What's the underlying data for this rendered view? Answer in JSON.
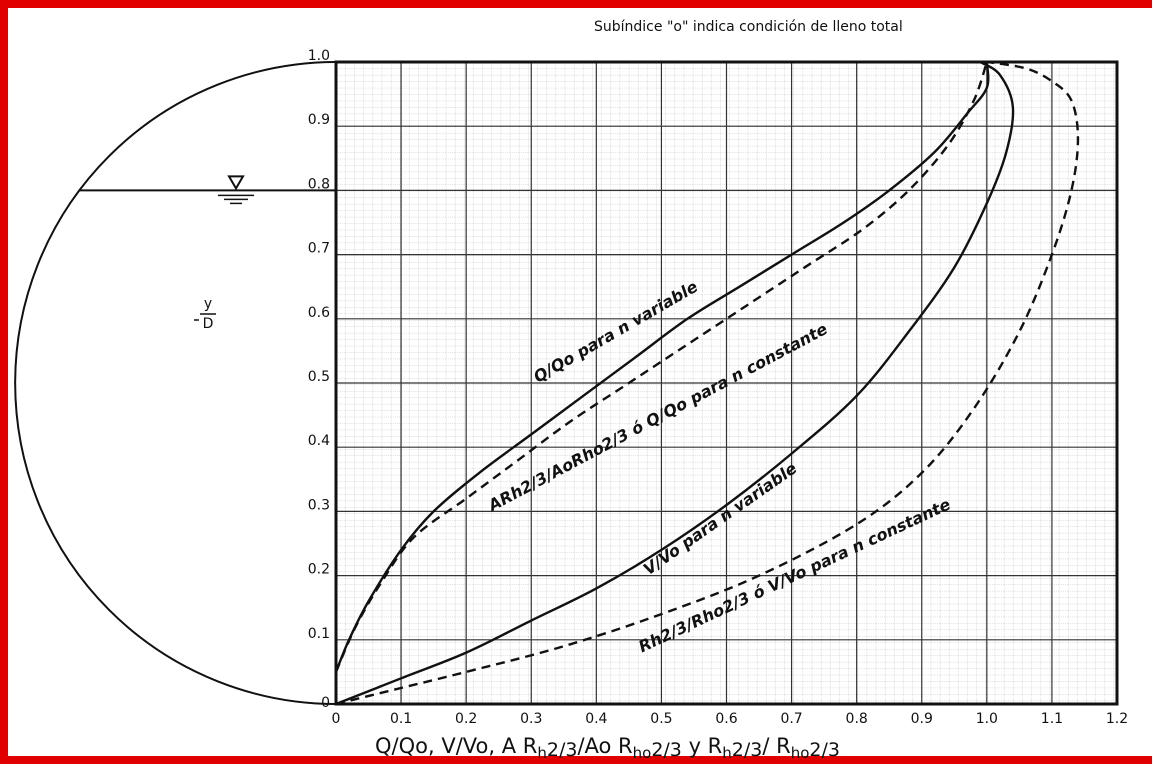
{
  "chart_data": {
    "type": "line",
    "title": "Subíndice \"o\" indica condición de lleno total",
    "xlabel": "Q/Qo, V/Vo, A Rh2/3/Ao Rho2/3 y Rh2/3/Rho2/3",
    "xlabel_parts": [
      "Q/Qo, V/Vo, A R",
      "h",
      "2/3",
      "/Ao R",
      "ho",
      "2/3",
      " y R",
      "h",
      "2/3",
      "/ R",
      "ho",
      "2/3"
    ],
    "ylabel": "y/D",
    "ylabel_parts": {
      "num": "y",
      "den": "D"
    },
    "xlim": [
      0,
      1.2
    ],
    "ylim": [
      0,
      1.0
    ],
    "grid": true,
    "x_ticks": [
      "0",
      "0.1",
      "0.2",
      "0.3",
      "0.4",
      "0.5",
      "0.6",
      "0.7",
      "0.8",
      "0.9",
      "1.0",
      "1.1",
      "1.2"
    ],
    "y_ticks": [
      "0",
      "0.1",
      "0.2",
      "0.3",
      "0.4",
      "0.5",
      "0.6",
      "0.7",
      "0.8",
      "0.9",
      "1.0"
    ],
    "water_level": 0.8,
    "series": [
      {
        "name": "Q/Qo para n variable",
        "style": "solid",
        "x": [
          0.0,
          0.02,
          0.05,
          0.1,
          0.15,
          0.22,
          0.3,
          0.38,
          0.46,
          0.54,
          0.62,
          0.7,
          0.78,
          0.85,
          0.92,
          0.97,
          1.0,
          1.0
        ],
        "y": [
          0.05,
          0.1,
          0.16,
          0.24,
          0.3,
          0.36,
          0.42,
          0.48,
          0.54,
          0.6,
          0.65,
          0.7,
          0.75,
          0.8,
          0.86,
          0.92,
          0.96,
          1.0
        ]
      },
      {
        "name": "ARh2/3/AoRho2/3 ó Q/Qo para n constante",
        "style": "dashed",
        "x": [
          0.0,
          0.03,
          0.07,
          0.12,
          0.2,
          0.28,
          0.36,
          0.45,
          0.54,
          0.63,
          0.72,
          0.81,
          0.88,
          0.94,
          0.98,
          1.0
        ],
        "y": [
          0.05,
          0.12,
          0.19,
          0.26,
          0.32,
          0.38,
          0.44,
          0.5,
          0.56,
          0.62,
          0.68,
          0.74,
          0.8,
          0.87,
          0.94,
          1.0
        ]
      },
      {
        "name": "V/Vo para n variable",
        "style": "solid",
        "x": [
          0.0,
          0.1,
          0.2,
          0.3,
          0.4,
          0.5,
          0.6,
          0.7,
          0.8,
          0.88,
          0.95,
          1.0,
          1.03,
          1.04,
          1.02,
          0.99
        ],
        "y": [
          0.0,
          0.04,
          0.08,
          0.13,
          0.18,
          0.24,
          0.31,
          0.39,
          0.48,
          0.58,
          0.68,
          0.78,
          0.86,
          0.93,
          0.98,
          1.0
        ]
      },
      {
        "name": "Rh2/3/Rho2/3 ó V/Vo para n constante",
        "style": "dashed",
        "x": [
          0.0,
          0.08,
          0.2,
          0.35,
          0.5,
          0.65,
          0.8,
          0.9,
          0.98,
          1.05,
          1.1,
          1.13,
          1.14,
          1.13,
          1.1,
          1.06,
          1.0
        ],
        "y": [
          0.0,
          0.02,
          0.05,
          0.09,
          0.14,
          0.2,
          0.28,
          0.36,
          0.46,
          0.58,
          0.7,
          0.8,
          0.88,
          0.94,
          0.97,
          0.99,
          1.0
        ]
      }
    ],
    "labels": {
      "q_var": "Q/Qo  para  n variable",
      "arh_const": "ARh2/3/AoRho2/3  ó  Q/Qo  para  n constante",
      "v_var": "V/Vo  para  n variable",
      "rh_const": "Rh2/3/Rho2/3  ó  V/Vo  para  n constante"
    }
  }
}
